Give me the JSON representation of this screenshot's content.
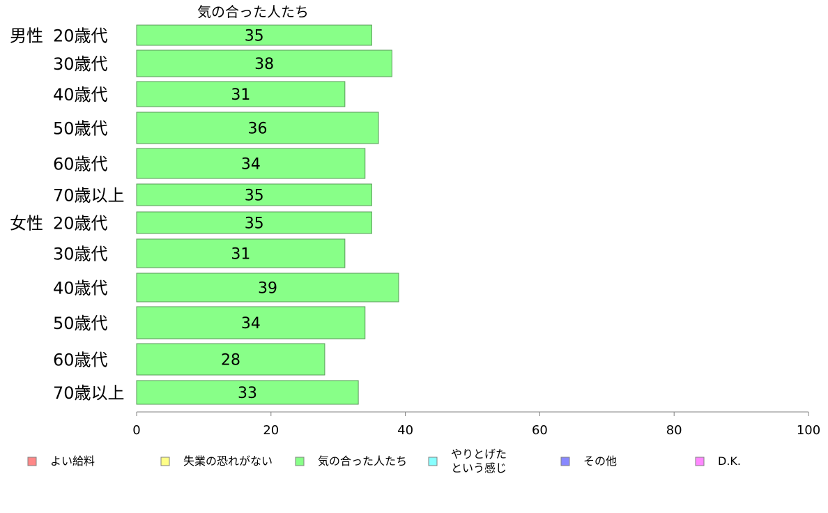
{
  "chart_data": {
    "type": "bar",
    "orientation": "horizontal",
    "title": "気の合った人たち",
    "bar_color": "#88ff88",
    "xlim": [
      0,
      100
    ],
    "x_ticks": [
      0,
      20,
      40,
      60,
      80,
      100
    ],
    "grid": false,
    "legend_position": "bottom",
    "categories": [
      {
        "group": "男性",
        "label": "20歳代",
        "value": 35
      },
      {
        "group": "",
        "label": "30歳代",
        "value": 38
      },
      {
        "group": "",
        "label": "40歳代",
        "value": 31
      },
      {
        "group": "",
        "label": "50歳代",
        "value": 36
      },
      {
        "group": "",
        "label": "60歳代",
        "value": 34
      },
      {
        "group": "",
        "label": "70歳以上",
        "value": 35
      },
      {
        "group": "女性",
        "label": "20歳代",
        "value": 35
      },
      {
        "group": "",
        "label": "30歳代",
        "value": 31
      },
      {
        "group": "",
        "label": "40歳代",
        "value": 39
      },
      {
        "group": "",
        "label": "50歳代",
        "value": 34
      },
      {
        "group": "",
        "label": "60歳代",
        "value": 28
      },
      {
        "group": "",
        "label": "70歳以上",
        "value": 33
      }
    ],
    "legend": [
      {
        "lines": [
          "よい給料"
        ],
        "color": "#ff8888"
      },
      {
        "lines": [
          "失業の恐れがない"
        ],
        "color": "#ffff88"
      },
      {
        "lines": [
          "気の合った人たち"
        ],
        "color": "#88ff88"
      },
      {
        "lines": [
          "やりとげた",
          "という感じ"
        ],
        "color": "#88ffff"
      },
      {
        "lines": [
          "その他"
        ],
        "color": "#8888ff"
      },
      {
        "lines": [
          "D.K."
        ],
        "color": "#ff88ff"
      }
    ]
  }
}
